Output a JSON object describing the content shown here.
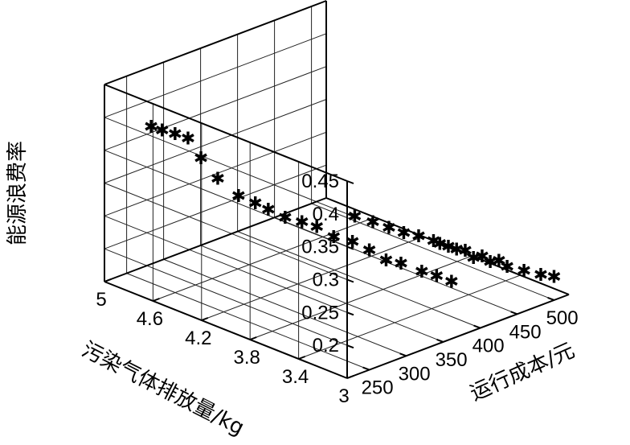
{
  "chart_data": {
    "type": "scatter3d",
    "title": "",
    "xlabel": "运行成本/元",
    "ylabel": "污染气体排放量/kg",
    "zlabel": "能源浪费率",
    "xlim": [
      220,
      520
    ],
    "ylim": [
      3.0,
      5.0
    ],
    "zlim": [
      0.15,
      0.45
    ],
    "xticks": [
      "250",
      "300",
      "350",
      "400",
      "450",
      "500"
    ],
    "yticks": [
      "3",
      "3.4",
      "3.8",
      "4.2",
      "4.6",
      "5"
    ],
    "zticks": [
      "0.2",
      "0.25",
      "0.3",
      "0.35",
      "0.4",
      "0.45"
    ],
    "marker": "*",
    "grid": true,
    "points": [
      [
        229,
        4.67,
        0.408
      ],
      [
        234,
        4.61,
        0.405
      ],
      [
        240,
        4.54,
        0.402
      ],
      [
        246,
        4.47,
        0.398
      ],
      [
        252,
        4.4,
        0.37
      ],
      [
        260,
        4.31,
        0.342
      ],
      [
        270,
        4.2,
        0.32
      ],
      [
        278,
        4.11,
        0.312
      ],
      [
        284,
        4.04,
        0.305
      ],
      [
        292,
        3.95,
        0.296
      ],
      [
        300,
        3.86,
        0.292
      ],
      [
        307,
        3.78,
        0.288
      ],
      [
        315,
        3.69,
        0.276
      ],
      [
        324,
        3.59,
        0.272
      ],
      [
        332,
        3.5,
        0.262
      ],
      [
        340,
        3.41,
        0.25
      ],
      [
        347,
        3.33,
        0.248
      ],
      [
        357,
        3.22,
        0.24
      ],
      [
        364,
        3.14,
        0.236
      ],
      [
        371,
        3.06,
        0.23
      ],
      [
        378,
        3.9,
        0.265
      ],
      [
        386,
        3.8,
        0.26
      ],
      [
        393,
        3.71,
        0.255
      ],
      [
        400,
        3.63,
        0.25
      ],
      [
        407,
        3.55,
        0.248
      ],
      [
        414,
        3.47,
        0.244
      ],
      [
        421,
        3.39,
        0.238
      ],
      [
        429,
        3.3,
        0.235
      ],
      [
        437,
        3.21,
        0.23
      ],
      [
        445,
        3.12,
        0.226
      ],
      [
        452,
        3.65,
        0.21
      ],
      [
        460,
        3.56,
        0.205
      ],
      [
        468,
        3.47,
        0.195
      ],
      [
        476,
        3.38,
        0.192
      ],
      [
        484,
        3.29,
        0.188
      ],
      [
        492,
        3.2,
        0.185
      ],
      [
        500,
        3.11,
        0.182
      ],
      [
        508,
        3.05,
        0.18
      ]
    ]
  }
}
